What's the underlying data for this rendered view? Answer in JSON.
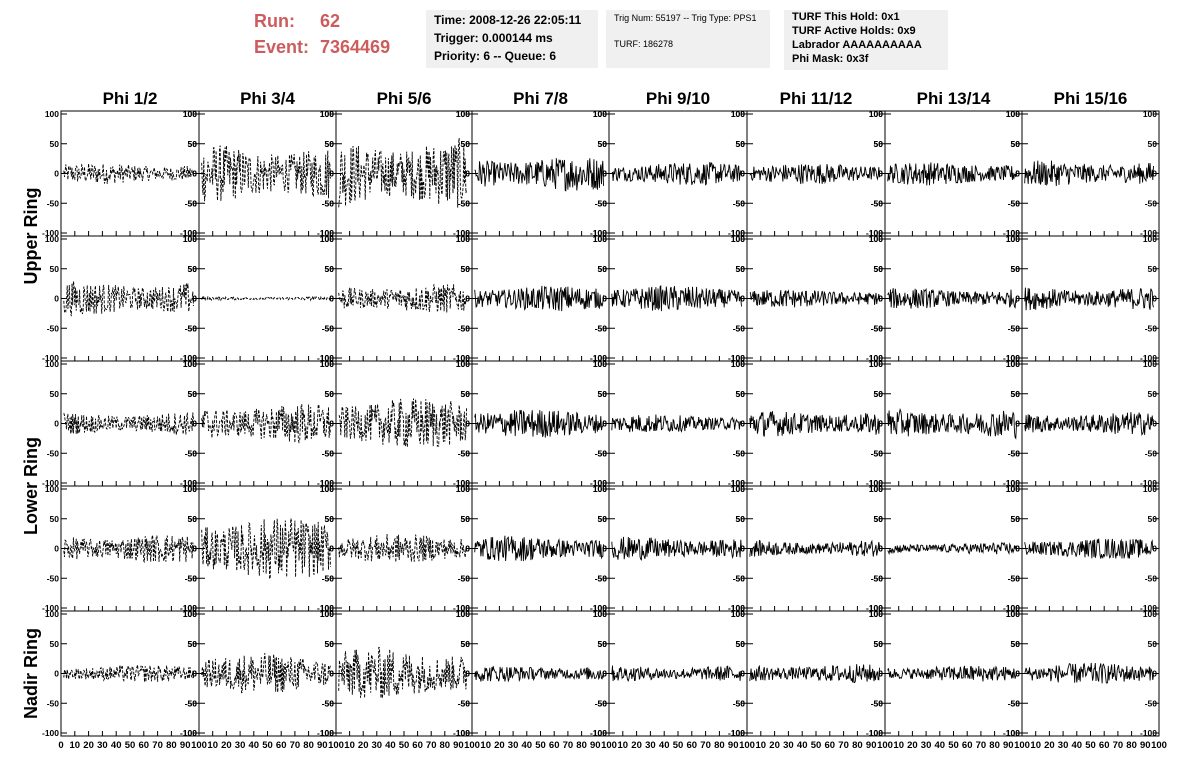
{
  "header": {
    "run_label": "Run:",
    "run_value": "62",
    "event_label": "Event:",
    "event_value": "7364469",
    "time": "Time: 2008-12-26 22:05:11",
    "trigger": "Trigger: 0.000144 ms",
    "priority": "Priority: 6 -- Queue: 6",
    "trig_num": "Trig Num: 55197 -- Trig Type: PPS1",
    "turf": "TURF: 186278",
    "turf_this_hold": "TURF This Hold: 0x1",
    "turf_active_holds": "TURF Active Holds: 0x9",
    "labrador": "Labrador AAAAAAAAAA",
    "phi_mask": "Phi Mask: 0x3f"
  },
  "chart_data": {
    "type": "line",
    "layout": "grid",
    "columns": [
      "Phi 1/2",
      "Phi 3/4",
      "Phi 5/6",
      "Phi 7/8",
      "Phi 9/10",
      "Phi 11/12",
      "Phi 13/14",
      "Phi 15/16"
    ],
    "ring_labels": [
      {
        "label": "Upper Ring",
        "rows": [
          0,
          1
        ]
      },
      {
        "label": "Lower Ring",
        "rows": [
          2,
          3
        ]
      },
      {
        "label": "Nadir Ring",
        "rows": [
          4
        ]
      }
    ],
    "xlim": [
      0,
      100
    ],
    "ylim": [
      -100,
      100
    ],
    "x_ticks": [
      0,
      10,
      20,
      30,
      40,
      50,
      60,
      70,
      80,
      90,
      100
    ],
    "x_tick_labels": [
      "0",
      "10",
      "20",
      "30",
      "40",
      "50",
      "60",
      "70",
      "80",
      "90",
      "100"
    ],
    "y_ticks": [
      -100,
      -50,
      0,
      50,
      100
    ],
    "y_tick_labels": [
      "-100",
      "-50",
      "0",
      "50",
      "100"
    ],
    "x_samples_range": [
      2,
      96
    ],
    "series_style_by_column": [
      "dashed",
      "dashed",
      "dashed",
      "solid",
      "solid",
      "solid",
      "solid",
      "solid"
    ],
    "line_color": "#000000",
    "approx_amplitude": [
      [
        18,
        50,
        60,
        30,
        20,
        18,
        20,
        22
      ],
      [
        30,
        3,
        25,
        22,
        22,
        16,
        18,
        20
      ],
      [
        20,
        35,
        45,
        25,
        16,
        22,
        25,
        20
      ],
      [
        25,
        55,
        25,
        22,
        20,
        14,
        10,
        18
      ],
      [
        15,
        35,
        45,
        14,
        14,
        16,
        14,
        18
      ]
    ]
  }
}
